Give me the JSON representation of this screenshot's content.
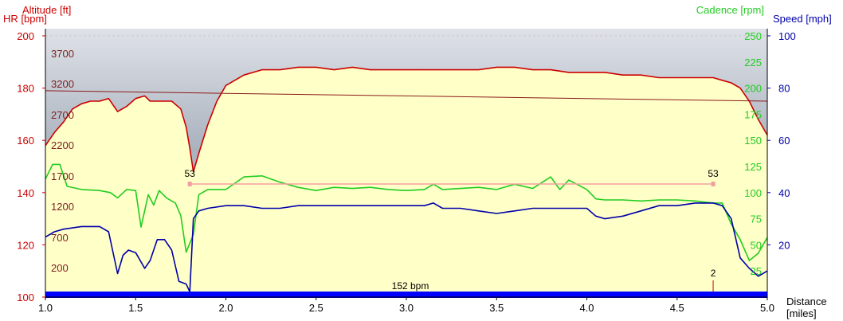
{
  "colors": {
    "hr": "#cc0000",
    "altitude_text": "#7a1f1f",
    "cadence": "#22cc22",
    "speed": "#0000aa",
    "zone_bar": "#0000ff",
    "lap_line": "#f4a0a0",
    "sky_top": "#9aa3b0",
    "sky_bottom": "#e4e7ec",
    "fill": "#ffffc8",
    "axis": "#000000"
  },
  "labels": {
    "altitude_axis": "Altitude [ft]",
    "hr_axis": "HR [bpm]",
    "cadence_axis": "Cadence [rpm]",
    "speed_axis": "Speed [mph]",
    "distance_axis_line1": "Distance",
    "distance_axis_line2": "[miles]",
    "zone_bar_text": "152 bpm",
    "lap_marker": "2",
    "lap_start_label": "53",
    "lap_end_label": "53"
  },
  "chart_data": {
    "type": "line",
    "x": {
      "label": "Distance [miles]",
      "range": [
        1.0,
        5.0
      ],
      "ticks": [
        "1.0",
        "1.5",
        "2.0",
        "2.5",
        "3.0",
        "3.5",
        "4.0",
        "4.5",
        "5.0"
      ]
    },
    "axes": {
      "hr": {
        "label": "HR [bpm]",
        "range": [
          100,
          200
        ],
        "ticks": [
          100,
          120,
          140,
          160,
          180,
          200
        ]
      },
      "altitude": {
        "label": "Altitude [ft]",
        "ticks": [
          200,
          700,
          1200,
          1700,
          2200,
          2700,
          3200,
          3700
        ]
      },
      "cadence": {
        "label": "Cadence [rpm]",
        "range": [
          0,
          250
        ],
        "ticks": [
          25,
          50,
          75,
          100,
          125,
          150,
          175,
          200,
          225,
          250
        ]
      },
      "speed": {
        "label": "Speed [mph]",
        "range": [
          0,
          100
        ],
        "ticks": [
          20,
          40,
          60,
          80,
          100
        ]
      }
    },
    "grid": "horizontal dashed at top",
    "series": [
      {
        "name": "HR [bpm]",
        "axis": "hr",
        "x": [
          1.0,
          1.05,
          1.1,
          1.15,
          1.2,
          1.25,
          1.3,
          1.35,
          1.4,
          1.45,
          1.5,
          1.55,
          1.58,
          1.62,
          1.65,
          1.7,
          1.75,
          1.78,
          1.8,
          1.82,
          1.85,
          1.9,
          1.95,
          2.0,
          2.1,
          2.2,
          2.3,
          2.4,
          2.5,
          2.6,
          2.7,
          2.8,
          2.9,
          3.0,
          3.1,
          3.2,
          3.3,
          3.4,
          3.5,
          3.6,
          3.7,
          3.8,
          3.9,
          4.0,
          4.1,
          4.2,
          4.3,
          4.4,
          4.5,
          4.6,
          4.7,
          4.75,
          4.8,
          4.85,
          4.9,
          4.95,
          5.0
        ],
        "values": [
          158,
          163,
          167,
          172,
          174,
          175,
          175,
          176,
          171,
          173,
          176,
          177,
          175,
          175,
          175,
          175,
          172,
          165,
          157,
          148,
          155,
          166,
          175,
          181,
          185,
          187,
          187,
          188,
          188,
          187,
          188,
          187,
          187,
          187,
          187,
          187,
          187,
          187,
          188,
          188,
          187,
          187,
          186,
          186,
          186,
          185,
          185,
          184,
          184,
          184,
          184,
          183,
          182,
          180,
          175,
          168,
          162
        ]
      },
      {
        "name": "Cadence [rpm]",
        "axis": "cadence",
        "x": [
          1.0,
          1.04,
          1.08,
          1.12,
          1.2,
          1.3,
          1.36,
          1.4,
          1.45,
          1.5,
          1.53,
          1.57,
          1.6,
          1.63,
          1.67,
          1.72,
          1.75,
          1.78,
          1.82,
          1.85,
          1.9,
          2.0,
          2.1,
          2.2,
          2.3,
          2.4,
          2.5,
          2.6,
          2.7,
          2.8,
          2.9,
          3.0,
          3.1,
          3.15,
          3.2,
          3.3,
          3.4,
          3.5,
          3.6,
          3.7,
          3.8,
          3.85,
          3.9,
          4.0,
          4.05,
          4.1,
          4.2,
          4.3,
          4.4,
          4.5,
          4.6,
          4.7,
          4.75,
          4.8,
          4.85,
          4.9,
          4.95,
          5.0
        ],
        "values": [
          113,
          127,
          127,
          106,
          103,
          102,
          100,
          95,
          103,
          102,
          67,
          98,
          88,
          102,
          95,
          90,
          78,
          43,
          60,
          98,
          103,
          103,
          115,
          116,
          110,
          105,
          102,
          105,
          104,
          105,
          103,
          102,
          103,
          108,
          103,
          104,
          105,
          103,
          108,
          104,
          115,
          103,
          112,
          103,
          94,
          93,
          93,
          92,
          93,
          93,
          92,
          90,
          90,
          70,
          55,
          35,
          42,
          57
        ]
      },
      {
        "name": "Speed [mph]",
        "axis": "speed",
        "x": [
          1.0,
          1.05,
          1.1,
          1.2,
          1.3,
          1.35,
          1.4,
          1.43,
          1.46,
          1.5,
          1.55,
          1.58,
          1.62,
          1.66,
          1.7,
          1.74,
          1.78,
          1.8,
          1.82,
          1.85,
          1.9,
          2.0,
          2.1,
          2.2,
          2.3,
          2.4,
          2.5,
          2.6,
          2.7,
          2.8,
          2.9,
          3.0,
          3.1,
          3.15,
          3.2,
          3.3,
          3.4,
          3.5,
          3.6,
          3.7,
          3.8,
          3.9,
          4.0,
          4.05,
          4.1,
          4.2,
          4.3,
          4.4,
          4.5,
          4.6,
          4.7,
          4.75,
          4.8,
          4.85,
          4.9,
          4.95,
          5.0
        ],
        "values": [
          23,
          25,
          26,
          27,
          27,
          25,
          9,
          16,
          18,
          17,
          11,
          14,
          22,
          22,
          18,
          6,
          5,
          2,
          30,
          33,
          34,
          35,
          35,
          34,
          34,
          35,
          35,
          35,
          35,
          35,
          35,
          35,
          35,
          36,
          34,
          34,
          33,
          32,
          33,
          34,
          34,
          34,
          34,
          31,
          30,
          31,
          33,
          35,
          35,
          36,
          36,
          35,
          30,
          15,
          11,
          8,
          10
        ]
      },
      {
        "name": "Altitude [ft]",
        "axis": "hr",
        "x": [
          1.0,
          2.0,
          3.0,
          4.0,
          5.0
        ],
        "values": [
          179,
          178,
          177,
          176,
          175
        ]
      }
    ],
    "annotations": [
      {
        "type": "lap_segment",
        "x_start": 1.8,
        "x_end": 4.7,
        "label_start": "53",
        "label_end": "53"
      },
      {
        "type": "lap_marker",
        "x": 4.7,
        "label": "2"
      },
      {
        "type": "zone_bar",
        "label": "152 bpm"
      }
    ]
  }
}
